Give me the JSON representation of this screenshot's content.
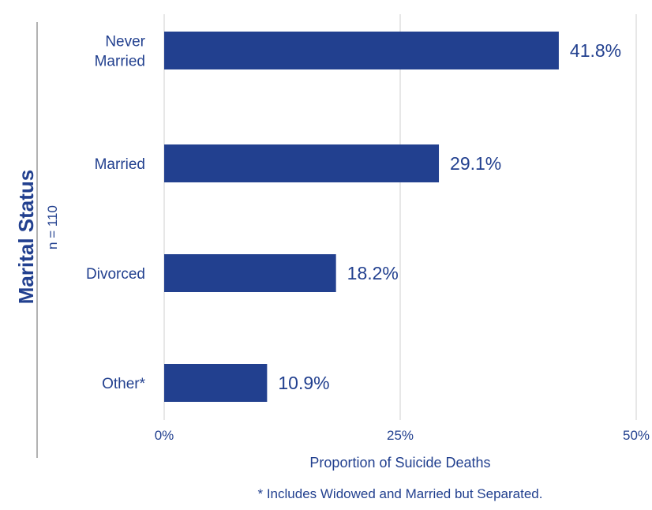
{
  "chart_data": {
    "type": "bar",
    "orientation": "horizontal",
    "title": "Marital Status",
    "subtitle": "n = 110",
    "xlabel": "Proportion of Suicide Deaths",
    "ylabel": "",
    "categories": [
      [
        "Never",
        "Married"
      ],
      [
        "Married"
      ],
      [
        "Divorced"
      ],
      [
        "Other*"
      ]
    ],
    "values": [
      41.8,
      29.1,
      18.2,
      10.9
    ],
    "value_labels": [
      "41.8%",
      "29.1%",
      "18.2%",
      "10.9%"
    ],
    "xlim": [
      0,
      50
    ],
    "xticks": [
      0,
      25,
      50
    ],
    "xtick_labels": [
      "0%",
      "25%",
      "50%"
    ],
    "grid": "vertical",
    "footnote": "* Includes Widowed and Married but Separated.",
    "colors": {
      "bar": "#22408f",
      "text": "#22408f",
      "grid": "#cfcfcf",
      "divider": "#999999"
    }
  }
}
